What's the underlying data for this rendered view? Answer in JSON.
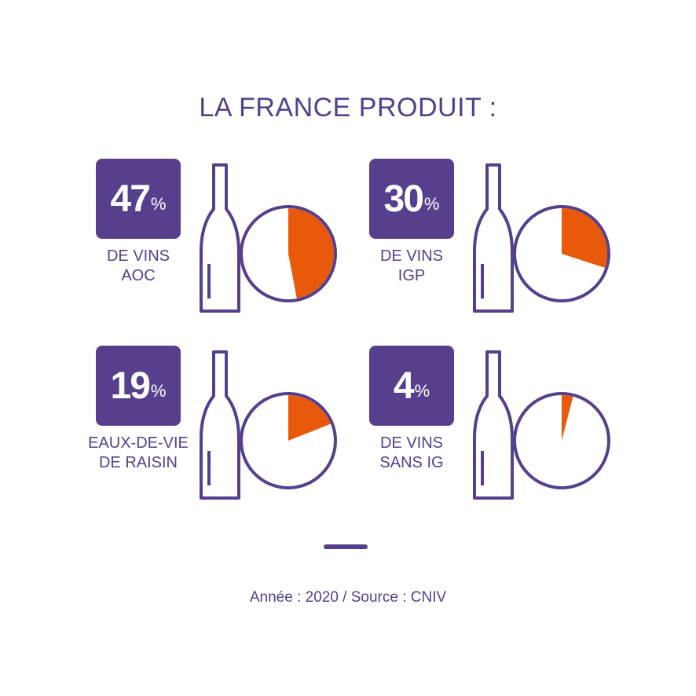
{
  "title": "LA FRANCE PRODUIT :",
  "source": "Année : 2020 / Source : CNIV",
  "colors": {
    "purple": "#56408d",
    "orange": "#e8590c",
    "white": "#ffffff"
  },
  "chart_data": [
    {
      "type": "pie",
      "title": "",
      "value": 47,
      "unit": "%",
      "label_line1": "DE VINS",
      "label_line2": "AOC"
    },
    {
      "type": "pie",
      "title": "",
      "value": 30,
      "unit": "%",
      "label_line1": "DE VINS",
      "label_line2": "IGP"
    },
    {
      "type": "pie",
      "title": "",
      "value": 19,
      "unit": "%",
      "label_line1": "EAUX-DE-VIE",
      "label_line2": "DE RAISIN"
    },
    {
      "type": "pie",
      "title": "",
      "value": 4,
      "unit": "%",
      "label_line1": "DE VINS",
      "label_line2": "SANS IG"
    }
  ]
}
